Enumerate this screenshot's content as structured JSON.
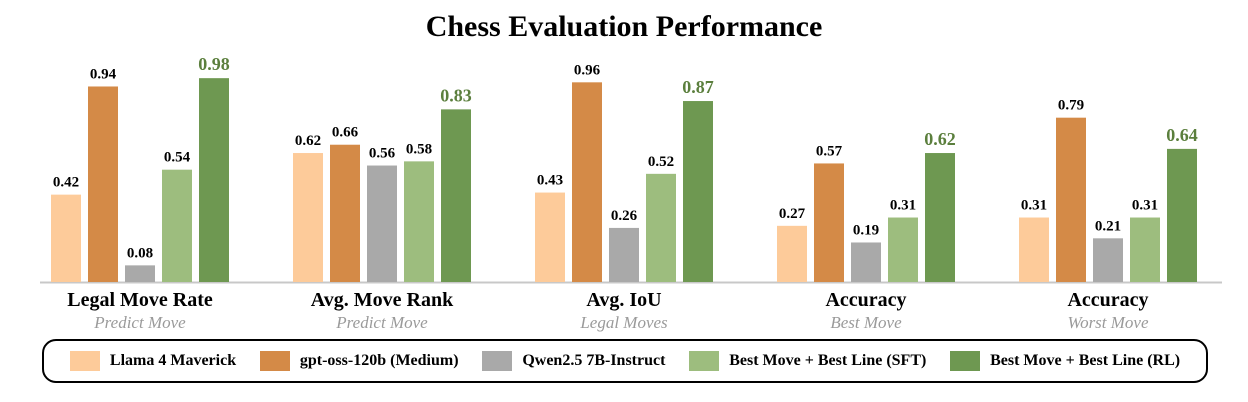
{
  "chart_data": {
    "type": "bar",
    "title": "Chess Evaluation Performance",
    "ylim": [
      0,
      1.0
    ],
    "grid": false,
    "legend_position": "bottom",
    "categories": [
      {
        "label": "Legal Move Rate",
        "sublabel": "Predict Move"
      },
      {
        "label": "Avg. Move Rank",
        "sublabel": "Predict Move"
      },
      {
        "label": "Avg. IoU",
        "sublabel": "Legal Moves"
      },
      {
        "label": "Accuracy",
        "sublabel": "Best Move"
      },
      {
        "label": "Accuracy",
        "sublabel": "Worst Move"
      }
    ],
    "series": [
      {
        "name": "Llama 4 Maverick",
        "color": "#FDCB9A",
        "values": [
          0.42,
          0.62,
          0.43,
          0.27,
          0.31
        ],
        "labels": [
          "0.42",
          "0.62",
          "0.43",
          "0.27",
          "0.31"
        ]
      },
      {
        "name": "gpt-oss-120b (Medium)",
        "color": "#D48A47",
        "values": [
          0.94,
          0.66,
          0.96,
          0.57,
          0.79
        ],
        "labels": [
          "0.94",
          "0.66",
          "0.96",
          "0.57",
          "0.79"
        ]
      },
      {
        "name": "Qwen2.5 7B-Instruct",
        "color": "#A9A9A9",
        "values": [
          0.08,
          0.56,
          0.26,
          0.19,
          0.21
        ],
        "labels": [
          "0.08",
          "0.56",
          "0.26",
          "0.19",
          "0.21"
        ]
      },
      {
        "name": "Best Move + Best Line (SFT)",
        "color": "#9DBD7E",
        "values": [
          0.54,
          0.58,
          0.52,
          0.31,
          0.31
        ],
        "labels": [
          "0.54",
          "0.58",
          "0.52",
          "0.31",
          "0.31"
        ]
      },
      {
        "name": "Best Move + Best Line (RL)",
        "color": "#6E9851",
        "values": [
          0.98,
          0.83,
          0.87,
          0.62,
          0.64
        ],
        "labels": [
          "0.98",
          "0.83",
          "0.87",
          "0.62",
          "0.64"
        ],
        "label_color": "#5B7F3D",
        "emphasis": true
      }
    ]
  }
}
